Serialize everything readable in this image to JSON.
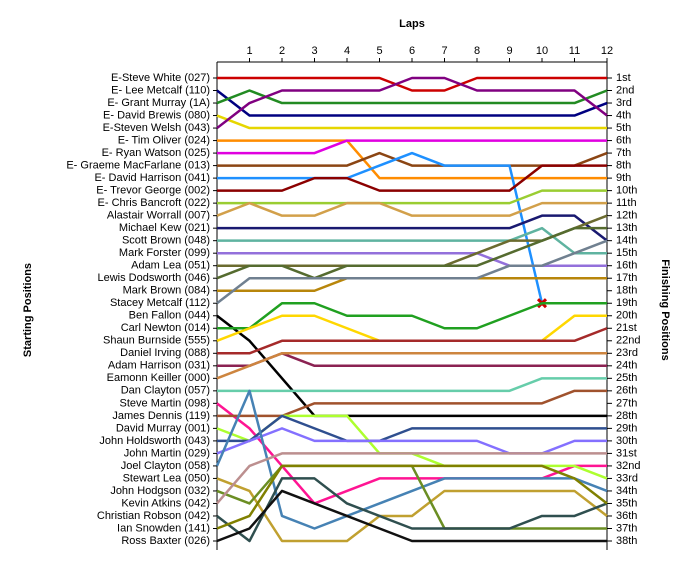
{
  "chart_data": {
    "type": "bump",
    "title": "Laps",
    "y_label": "Starting Positions",
    "y2_label": "Finishing Positions",
    "categories": [
      null,
      1,
      2,
      3,
      4,
      5,
      6,
      7,
      8,
      9,
      10,
      11,
      12
    ],
    "ylim": [
      38,
      1
    ],
    "yticks": [
      {
        "value": 1,
        "label": "1st"
      },
      {
        "value": 2,
        "label": "2nd"
      },
      {
        "value": 3,
        "label": "3rd"
      },
      {
        "value": 4,
        "label": "4th"
      },
      {
        "value": 5,
        "label": "5th"
      },
      {
        "value": 6,
        "label": "6th"
      },
      {
        "value": 7,
        "label": "7th"
      },
      {
        "value": 8,
        "label": "8th"
      },
      {
        "value": 9,
        "label": "9th"
      },
      {
        "value": 10,
        "label": "10th"
      },
      {
        "value": 11,
        "label": "11th"
      },
      {
        "value": 12,
        "label": "12th"
      },
      {
        "value": 13,
        "label": "13th"
      },
      {
        "value": 14,
        "label": "14th"
      },
      {
        "value": 15,
        "label": "15th"
      },
      {
        "value": 16,
        "label": "16th"
      },
      {
        "value": 17,
        "label": "17th"
      },
      {
        "value": 18,
        "label": "18th"
      },
      {
        "value": 19,
        "label": "19th"
      },
      {
        "value": 20,
        "label": "20th"
      },
      {
        "value": 21,
        "label": "21st"
      },
      {
        "value": 22,
        "label": "22nd"
      },
      {
        "value": 23,
        "label": "23rd"
      },
      {
        "value": 24,
        "label": "24th"
      },
      {
        "value": 25,
        "label": "25th"
      },
      {
        "value": 26,
        "label": "26th"
      },
      {
        "value": 27,
        "label": "27th"
      },
      {
        "value": 28,
        "label": "28th"
      },
      {
        "value": 29,
        "label": "29th"
      },
      {
        "value": 30,
        "label": "30th"
      },
      {
        "value": 31,
        "label": "31st"
      },
      {
        "value": 32,
        "label": "32nd"
      },
      {
        "value": 33,
        "label": "33rd"
      },
      {
        "value": 34,
        "label": "34th"
      },
      {
        "value": 35,
        "label": "35th"
      },
      {
        "value": 36,
        "label": "36th"
      },
      {
        "value": 37,
        "label": "37th"
      },
      {
        "value": 38,
        "label": "38th"
      }
    ],
    "series": [
      {
        "name": "E-Steve White (027)",
        "color": "#cc0000",
        "values": [
          1,
          1,
          1,
          1,
          1,
          1,
          2,
          2,
          1,
          1,
          1,
          1,
          1
        ]
      },
      {
        "name": "E- Lee Metcalf (110)",
        "color": "#000080",
        "values": [
          2,
          4,
          4,
          4,
          4,
          4,
          4,
          4,
          4,
          4,
          4,
          4,
          3
        ]
      },
      {
        "name": "E- Grant Murray (1A)",
        "color": "#228b22",
        "values": [
          3,
          2,
          3,
          3,
          3,
          3,
          3,
          3,
          3,
          3,
          3,
          3,
          2
        ]
      },
      {
        "name": "E- David Brewis (080)",
        "color": "#e6d600",
        "values": [
          4,
          5,
          5,
          5,
          5,
          5,
          5,
          5,
          5,
          5,
          5,
          5,
          5
        ]
      },
      {
        "name": "E-Steven Welsh (043)",
        "color": "#800080",
        "values": [
          5,
          3,
          2,
          2,
          2,
          2,
          1,
          1,
          2,
          2,
          2,
          2,
          4
        ]
      },
      {
        "name": "E- Tim Oliver (024)",
        "color": "#ff8c00",
        "values": [
          6,
          6,
          6,
          6,
          6,
          9,
          9,
          9,
          9,
          9,
          9,
          9,
          9
        ]
      },
      {
        "name": "E- Ryan Watson (025)",
        "color": "#e000e0",
        "values": [
          7,
          7,
          7,
          7,
          6,
          6,
          6,
          6,
          6,
          6,
          6,
          6,
          6
        ]
      },
      {
        "name": "E- Graeme MacFarlane (013)",
        "color": "#8b4513",
        "values": [
          8,
          8,
          8,
          8,
          8,
          7,
          8,
          8,
          8,
          8,
          8,
          8,
          7
        ]
      },
      {
        "name": "E- David Harrison (041)",
        "color": "#1e90ff",
        "values": [
          9,
          9,
          9,
          9,
          9,
          8,
          7,
          8,
          8,
          8,
          19,
          null,
          null
        ]
      },
      {
        "name": "E- Trevor George (002)",
        "color": "#8b0000",
        "values": [
          10,
          10,
          10,
          9,
          9,
          10,
          10,
          10,
          10,
          10,
          8,
          8,
          8
        ]
      },
      {
        "name": "E- Chris Bancroft (022)",
        "color": "#9acd32",
        "values": [
          11,
          11,
          11,
          11,
          11,
          11,
          11,
          11,
          11,
          11,
          10,
          10,
          10
        ]
      },
      {
        "name": "Alastair Worrall (007)",
        "color": "#d2a04a",
        "values": [
          12,
          11,
          12,
          12,
          11,
          11,
          12,
          12,
          12,
          12,
          11,
          11,
          11
        ]
      },
      {
        "name": "Michael Kew (021)",
        "color": "#191970",
        "values": [
          13,
          13,
          13,
          13,
          13,
          13,
          13,
          13,
          13,
          13,
          12,
          12,
          14
        ]
      },
      {
        "name": "Scott Brown (048)",
        "color": "#5fb3a0",
        "values": [
          14,
          14,
          14,
          14,
          14,
          14,
          14,
          14,
          14,
          14,
          13,
          15,
          15
        ]
      },
      {
        "name": "Mark Forster (099)",
        "color": "#9370db",
        "values": [
          15,
          15,
          15,
          15,
          15,
          15,
          15,
          15,
          15,
          16,
          16,
          16,
          16
        ]
      },
      {
        "name": "Adam Lea (051)",
        "color": "#6b6b2f",
        "values": [
          16,
          16,
          16,
          16,
          16,
          16,
          16,
          16,
          15,
          14,
          14,
          13,
          12
        ]
      },
      {
        "name": "Lewis Dodsworth (046)",
        "color": "#556b2f",
        "values": [
          17,
          16,
          16,
          17,
          16,
          16,
          16,
          16,
          16,
          15,
          14,
          13,
          13
        ]
      },
      {
        "name": "Mark Brown (084)",
        "color": "#b8860b",
        "values": [
          18,
          18,
          18,
          18,
          17,
          17,
          17,
          17,
          17,
          17,
          17,
          17,
          17
        ]
      },
      {
        "name": "Stacey Metcalf (112)",
        "color": "#708090",
        "values": [
          19,
          17,
          17,
          17,
          17,
          17,
          17,
          17,
          17,
          16,
          16,
          15,
          14
        ]
      },
      {
        "name": "Ben Fallon (044)",
        "color": "#000000",
        "values": [
          20,
          22,
          25,
          28,
          28,
          28,
          28,
          28,
          28,
          28,
          28,
          28,
          28
        ]
      },
      {
        "name": "Carl Newton (014)",
        "color": "#20a020",
        "values": [
          21,
          21,
          19,
          19,
          20,
          20,
          20,
          21,
          21,
          20,
          19,
          19,
          19
        ]
      },
      {
        "name": "Shaun Burnside (555)",
        "color": "#ffd700",
        "values": [
          22,
          21,
          20,
          20,
          21,
          22,
          22,
          22,
          22,
          22,
          22,
          20,
          20
        ]
      },
      {
        "name": "Daniel Irving (088)",
        "color": "#a52a2a",
        "values": [
          23,
          23,
          22,
          22,
          22,
          22,
          22,
          22,
          22,
          22,
          22,
          22,
          21
        ]
      },
      {
        "name": "Adam Harrison (031)",
        "color": "#8b2252",
        "values": [
          24,
          24,
          23,
          24,
          24,
          24,
          24,
          24,
          24,
          24,
          24,
          24,
          24
        ]
      },
      {
        "name": "Eamonn Keiller (000)",
        "color": "#cd853f",
        "values": [
          25,
          24,
          23,
          23,
          23,
          23,
          23,
          23,
          23,
          23,
          23,
          23,
          23
        ]
      },
      {
        "name": "Dan Clayton (057)",
        "color": "#66cdaa",
        "values": [
          26,
          26,
          26,
          26,
          26,
          26,
          26,
          26,
          26,
          26,
          25,
          25,
          25
        ]
      },
      {
        "name": "Steve Martin (098)",
        "color": "#ff1493",
        "values": [
          27,
          29,
          32,
          35,
          34,
          33,
          33,
          33,
          33,
          33,
          33,
          32,
          32
        ]
      },
      {
        "name": "James Dennis (119)",
        "color": "#a0522d",
        "values": [
          28,
          28,
          28,
          27,
          27,
          27,
          27,
          27,
          27,
          27,
          27,
          26,
          26
        ]
      },
      {
        "name": "David Murray (001)",
        "color": "#adff2f",
        "values": [
          29,
          30,
          28,
          28,
          28,
          31,
          31,
          32,
          32,
          32,
          32,
          32,
          33
        ]
      },
      {
        "name": "John Holdsworth (043)",
        "color": "#2f4f8f",
        "values": [
          30,
          30,
          28,
          29,
          30,
          30,
          29,
          29,
          29,
          29,
          29,
          29,
          29
        ]
      },
      {
        "name": "John Martin (029)",
        "color": "#8470ff",
        "values": [
          31,
          30,
          29,
          30,
          30,
          30,
          30,
          30,
          30,
          31,
          31,
          30,
          30
        ]
      },
      {
        "name": "Joel Clayton (058)",
        "color": "#4682b4",
        "values": [
          32,
          26,
          36,
          37,
          36,
          35,
          34,
          33,
          33,
          33,
          33,
          33,
          34
        ]
      },
      {
        "name": "Stewart Lea (050)",
        "color": "#c0a030",
        "values": [
          33,
          34,
          38,
          38,
          38,
          36,
          36,
          34,
          34,
          34,
          34,
          34,
          36
        ]
      },
      {
        "name": "John Hodgson (032)",
        "color": "#6b8e23",
        "values": [
          34,
          35,
          32,
          32,
          32,
          32,
          32,
          37,
          37,
          37,
          37,
          37,
          37
        ]
      },
      {
        "name": "Kevin Atkins (042)",
        "color": "#bc8f8f",
        "values": [
          35,
          32,
          31,
          31,
          31,
          31,
          31,
          31,
          31,
          31,
          31,
          31,
          31
        ]
      },
      {
        "name": "Christian Robson (042)",
        "color": "#2f4f4f",
        "values": [
          36,
          38,
          33,
          33,
          35,
          36,
          37,
          37,
          37,
          37,
          36,
          36,
          35
        ]
      },
      {
        "name": "Ian Snowden (141)",
        "color": "#808000",
        "values": [
          37,
          36,
          32,
          32,
          32,
          32,
          32,
          32,
          32,
          32,
          32,
          33,
          35
        ]
      },
      {
        "name": "Ross Baxter (026)",
        "color": "#111111",
        "values": [
          38,
          37,
          34,
          35,
          36,
          37,
          38,
          38,
          38,
          38,
          38,
          38,
          38
        ]
      }
    ]
  }
}
